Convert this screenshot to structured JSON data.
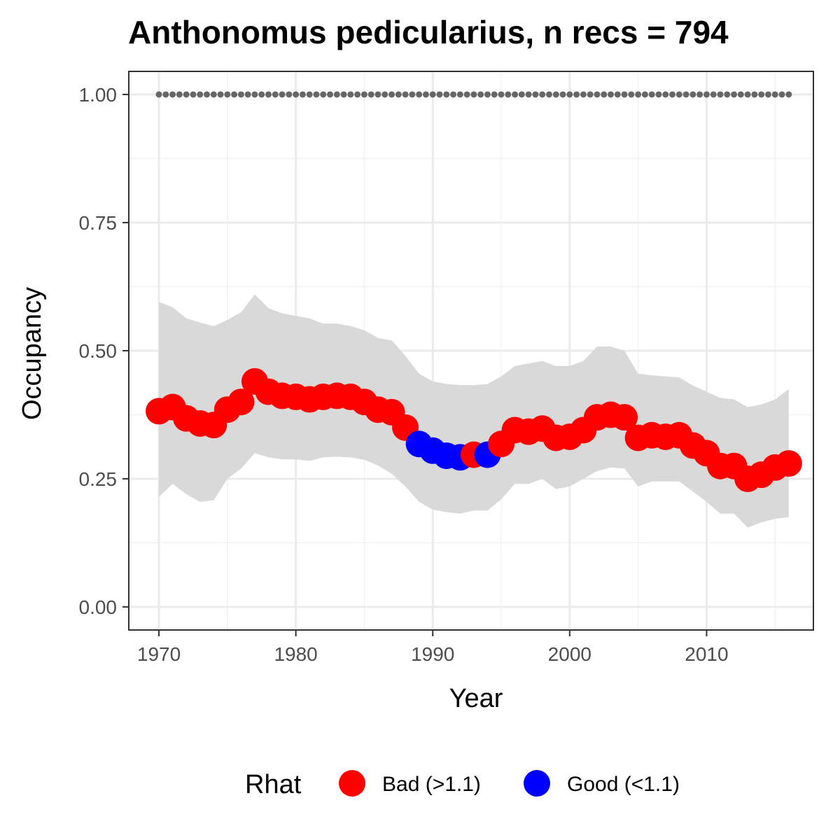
{
  "chart_data": {
    "type": "line",
    "title": "Anthonomus pedicularius, n recs = 794",
    "xlabel": "Year",
    "ylabel": "Occupancy",
    "xlim": [
      1967.8,
      2017.8
    ],
    "ylim": [
      -0.045,
      1.045
    ],
    "x_ticks": [
      1970,
      1980,
      1990,
      2000,
      2010
    ],
    "y_ticks": [
      0,
      0.25,
      0.5,
      0.75,
      1
    ],
    "y_tick_labels": [
      "0.00",
      "0.25",
      "0.50",
      "0.75",
      "1.00"
    ],
    "grid": true,
    "reference_line": {
      "y": 1.0,
      "style": "dotted",
      "color": "#666666"
    },
    "x": [
      1970,
      1971,
      1972,
      1973,
      1974,
      1975,
      1976,
      1977,
      1978,
      1979,
      1980,
      1981,
      1982,
      1983,
      1984,
      1985,
      1986,
      1987,
      1988,
      1989,
      1990,
      1991,
      1992,
      1993,
      1994,
      1995,
      1996,
      1997,
      1998,
      1999,
      2000,
      2001,
      2002,
      2003,
      2004,
      2005,
      2006,
      2007,
      2008,
      2009,
      2010,
      2011,
      2012,
      2013,
      2014,
      2015,
      2016
    ],
    "series": [
      {
        "name": "Occupancy",
        "values": [
          0.382,
          0.39,
          0.368,
          0.358,
          0.355,
          0.385,
          0.4,
          0.44,
          0.42,
          0.412,
          0.41,
          0.405,
          0.41,
          0.412,
          0.41,
          0.4,
          0.385,
          0.38,
          0.35,
          0.318,
          0.305,
          0.295,
          0.292,
          0.297,
          0.297,
          0.318,
          0.345,
          0.342,
          0.348,
          0.33,
          0.332,
          0.345,
          0.37,
          0.375,
          0.37,
          0.33,
          0.335,
          0.332,
          0.335,
          0.315,
          0.3,
          0.275,
          0.275,
          0.25,
          0.258,
          0.272,
          0.28
        ],
        "lower": [
          0.215,
          0.24,
          0.22,
          0.205,
          0.208,
          0.25,
          0.27,
          0.3,
          0.292,
          0.288,
          0.288,
          0.285,
          0.292,
          0.293,
          0.292,
          0.287,
          0.276,
          0.26,
          0.235,
          0.205,
          0.19,
          0.185,
          0.182,
          0.188,
          0.188,
          0.21,
          0.24,
          0.24,
          0.25,
          0.23,
          0.235,
          0.25,
          0.265,
          0.272,
          0.27,
          0.235,
          0.245,
          0.245,
          0.245,
          0.225,
          0.205,
          0.182,
          0.182,
          0.155,
          0.165,
          0.172,
          0.175
        ],
        "upper": [
          0.595,
          0.585,
          0.563,
          0.555,
          0.548,
          0.56,
          0.575,
          0.61,
          0.583,
          0.573,
          0.568,
          0.563,
          0.553,
          0.553,
          0.548,
          0.54,
          0.525,
          0.52,
          0.49,
          0.455,
          0.44,
          0.435,
          0.433,
          0.433,
          0.435,
          0.45,
          0.47,
          0.475,
          0.48,
          0.47,
          0.47,
          0.48,
          0.508,
          0.508,
          0.5,
          0.455,
          0.452,
          0.45,
          0.448,
          0.432,
          0.42,
          0.408,
          0.405,
          0.39,
          0.395,
          0.405,
          0.425
        ],
        "rhat_class": [
          "Bad",
          "Bad",
          "Bad",
          "Bad",
          "Bad",
          "Bad",
          "Bad",
          "Bad",
          "Bad",
          "Bad",
          "Bad",
          "Bad",
          "Bad",
          "Bad",
          "Bad",
          "Bad",
          "Bad",
          "Bad",
          "Bad",
          "Good",
          "Good",
          "Good",
          "Good",
          "Bad",
          "Good",
          "Bad",
          "Bad",
          "Bad",
          "Bad",
          "Bad",
          "Bad",
          "Bad",
          "Bad",
          "Bad",
          "Bad",
          "Bad",
          "Bad",
          "Bad",
          "Bad",
          "Bad",
          "Bad",
          "Bad",
          "Bad",
          "Bad",
          "Bad",
          "Bad",
          "Bad"
        ]
      }
    ],
    "band_color": "#d9d9d9",
    "colors": {
      "Bad": "#ff0000",
      "Good": "#0000ff"
    },
    "legend": {
      "title": "Rhat",
      "position": "bottom",
      "entries": [
        {
          "key": "Bad",
          "label": "Bad (>1.1)",
          "color": "#ff0000"
        },
        {
          "key": "Good",
          "label": "Good (<1.1)",
          "color": "#0000ff"
        }
      ]
    }
  }
}
